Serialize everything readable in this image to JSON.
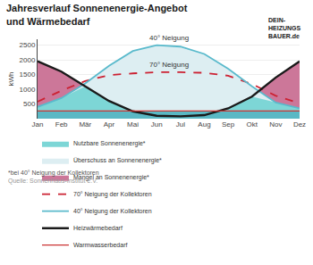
{
  "chart_data": {
    "type": "area",
    "title": "Jahresverlauf Sonnenenergie-Angebot\nund Wärmebedarf",
    "categories": [
      "Jan",
      "Feb",
      "Mär",
      "Apr",
      "Mai",
      "Jun",
      "Jul",
      "Aug",
      "Sep",
      "Okt",
      "Nov",
      "Dez"
    ],
    "ylabel": "kWh",
    "ylim": [
      0,
      2700
    ],
    "yticks": [
      500,
      1000,
      1500,
      2000,
      2500
    ],
    "grid": true,
    "series": [
      {
        "type": "area",
        "color": "#5ab8c4",
        "values": [
          260,
          260,
          260,
          260,
          260,
          260,
          260,
          260,
          260,
          260,
          260,
          260
        ]
      },
      {
        "name": "Nutzbare Sonnenenergie*",
        "type": "area",
        "color": "#7dd6d6",
        "values": [
          400,
          700,
          1100,
          600,
          250,
          100,
          80,
          120,
          350,
          750,
          550,
          350
        ]
      },
      {
        "name": "Überschuss an Sonnenenergie*",
        "type": "area",
        "color": "#ddeef2",
        "values": [
          400,
          700,
          1200,
          1800,
          2300,
          2500,
          2450,
          2200,
          1700,
          1100,
          550,
          350
        ]
      },
      {
        "name": "Mangel an Sonnenenergie*",
        "type": "area",
        "color": "#cc7799",
        "values": [
          1950,
          1600,
          1100,
          600,
          250,
          100,
          80,
          120,
          350,
          750,
          1400,
          1950
        ]
      },
      {
        "name": "70° Neigung der Kollektoren",
        "type": "line",
        "color": "#cc2233",
        "line_style": "dashed",
        "values": [
          580,
          950,
          1280,
          1480,
          1540,
          1580,
          1580,
          1560,
          1460,
          1180,
          780,
          520
        ]
      },
      {
        "name": "40° Neigung der Kollektoren",
        "type": "line",
        "color": "#5abacc",
        "line_style": "solid",
        "values": [
          400,
          700,
          1200,
          1800,
          2300,
          2500,
          2450,
          2200,
          1700,
          1100,
          550,
          350
        ]
      },
      {
        "name": "Heizwärmebedarf",
        "type": "line",
        "color": "#1a1a1a",
        "line_style": "solid",
        "values": [
          1950,
          1600,
          1100,
          600,
          250,
          100,
          80,
          120,
          350,
          750,
          1400,
          1950
        ]
      },
      {
        "name": "Warmwasserbedarf",
        "type": "line",
        "color": "#cc3333",
        "line_style": "solid",
        "values": [
          260,
          260,
          260,
          260,
          260,
          260,
          260,
          260,
          260,
          260,
          260,
          260
        ]
      }
    ],
    "annotations": [
      {
        "text": "40° Neigung",
        "x": 5.5,
        "y": 2540
      },
      {
        "text": "70° Neigung",
        "x": 5.5,
        "y": 1630
      }
    ],
    "footnote": "*bei 40° Neigung der Kollektoren",
    "source": "Quelle: Sonnenhaus-Institut e.V.",
    "logo_text": [
      "DEIN-",
      "HEIZUNGS",
      "BAUER.de"
    ]
  }
}
